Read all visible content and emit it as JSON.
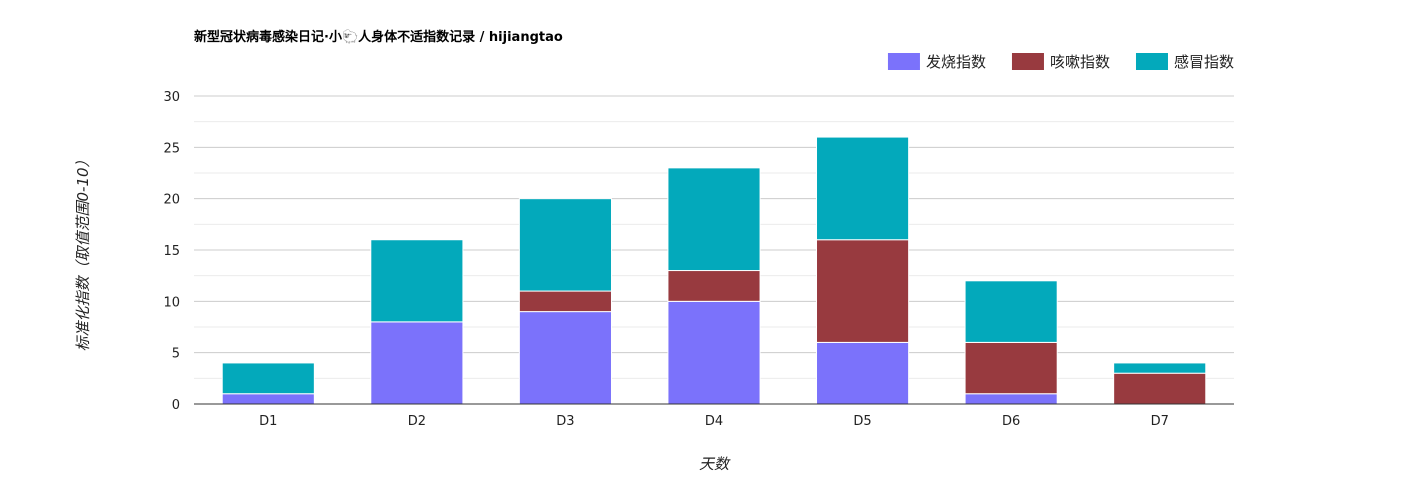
{
  "chart_data": {
    "type": "bar",
    "stacked": true,
    "title": "新型冠状病毒感染日记·小🐑人身体不适指数记录 / hijiangtao",
    "xlabel": "天数",
    "ylabel": "标准化指数（取值范围0-10）",
    "categories": [
      "D1",
      "D2",
      "D3",
      "D4",
      "D5",
      "D6",
      "D7"
    ],
    "series": [
      {
        "name": "发烧指数",
        "color": "#7b72fb",
        "values": [
          1,
          8,
          9,
          10,
          6,
          1,
          0
        ]
      },
      {
        "name": "咳嗽指数",
        "color": "#983a3f",
        "values": [
          0,
          0,
          2,
          3,
          10,
          5,
          3
        ]
      },
      {
        "name": "感冒指数",
        "color": "#03a9bb",
        "values": [
          3,
          8,
          9,
          10,
          10,
          6,
          1
        ]
      }
    ],
    "ylim": [
      0,
      30
    ],
    "yticks": [
      0,
      5,
      10,
      15,
      20,
      25,
      30
    ],
    "grid": true,
    "legend_position": "top-right"
  }
}
